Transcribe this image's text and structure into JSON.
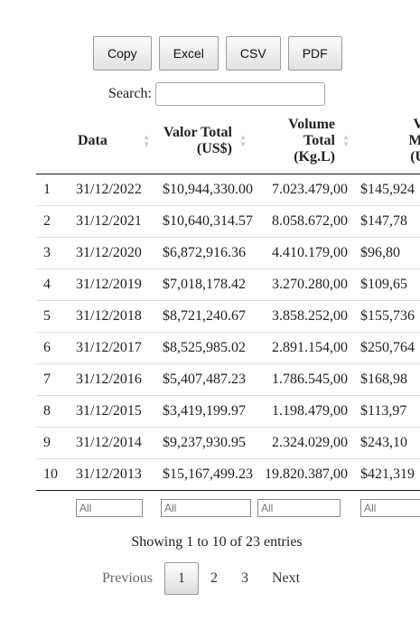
{
  "toolbar": {
    "buttons": [
      "Copy",
      "Excel",
      "CSV",
      "PDF"
    ]
  },
  "search": {
    "label": "Search:",
    "value": "",
    "placeholder": ""
  },
  "table": {
    "headers": [
      {
        "lines": [
          ""
        ]
      },
      {
        "lines": [
          "Data"
        ]
      },
      {
        "lines": [
          "Valor Total",
          "(US$)"
        ]
      },
      {
        "lines": [
          "Volume",
          "Total",
          "(Kg.L)"
        ]
      },
      {
        "lines": [
          "Valo",
          "Médi",
          "(US$"
        ]
      }
    ],
    "rows": [
      [
        "1",
        "31/12/2022",
        "$10,944,330.00",
        "7.023.479,00",
        "$145,924"
      ],
      [
        "2",
        "31/12/2021",
        "$10,640,314.57",
        "8.058.672,00",
        "$147,78"
      ],
      [
        "3",
        "31/12/2020",
        "$6,872,916.36",
        "4.410.179,00",
        "$96,80"
      ],
      [
        "4",
        "31/12/2019",
        "$7,018,178.42",
        "3.270.280,00",
        "$109,65"
      ],
      [
        "5",
        "31/12/2018",
        "$8,721,240.67",
        "3.858.252,00",
        "$155,736"
      ],
      [
        "6",
        "31/12/2017",
        "$8,525,985.02",
        "2.891.154,00",
        "$250,764"
      ],
      [
        "7",
        "31/12/2016",
        "$5,407,487.23",
        "1.786.545,00",
        "$168,98"
      ],
      [
        "8",
        "31/12/2015",
        "$3,419,199.97",
        "1.198.479,00",
        "$113,97"
      ],
      [
        "9",
        "31/12/2014",
        "$9,237,930.95",
        "2.324.029,00",
        "$243,10"
      ],
      [
        "10",
        "31/12/2013",
        "$15,167,499.23",
        "19.820.387,00",
        "$421,319"
      ]
    ],
    "filter_placeholder": "All"
  },
  "info": "Showing 1 to 10 of 23 entries",
  "pagination": {
    "previous": "Previous",
    "pages": [
      "1",
      "2",
      "3"
    ],
    "current": "1",
    "next": "Next"
  }
}
